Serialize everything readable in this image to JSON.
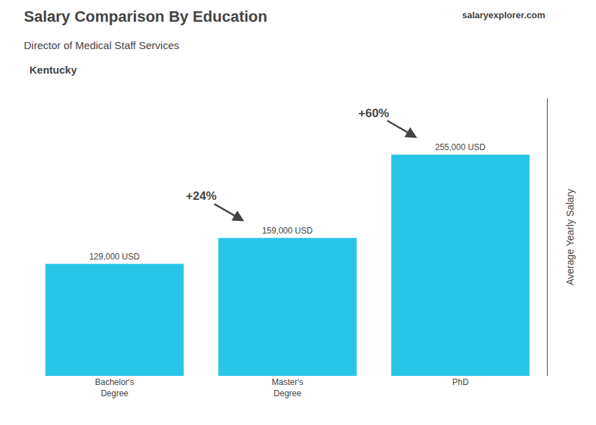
{
  "chart_data": {
    "type": "bar",
    "title": "Salary Comparison By Education",
    "subtitle": "Director of Medical Staff Services",
    "ylabel": "Average Yearly Salary",
    "categories": [
      "Bachelor's\nDegree",
      "Master's\nDegree",
      "PhD"
    ],
    "values": [
      129000,
      159000,
      255000
    ],
    "value_labels": [
      "129,000 USD",
      "159,000 USD",
      "255,000 USD"
    ],
    "data_labels": true,
    "color": "#29c5e6",
    "ylim": [
      0,
      320000
    ],
    "tick_labels": "x",
    "grid": false,
    "annotations": [
      {
        "text": "Kentucky"
      },
      {
        "text": "salaryexplorer.com"
      },
      {
        "text": "+24%",
        "from": "Bachelor's\nDegree",
        "to": "Master's\nDegree"
      },
      {
        "text": "+60%",
        "from": "Master's\nDegree",
        "to": "PhD"
      }
    ]
  }
}
